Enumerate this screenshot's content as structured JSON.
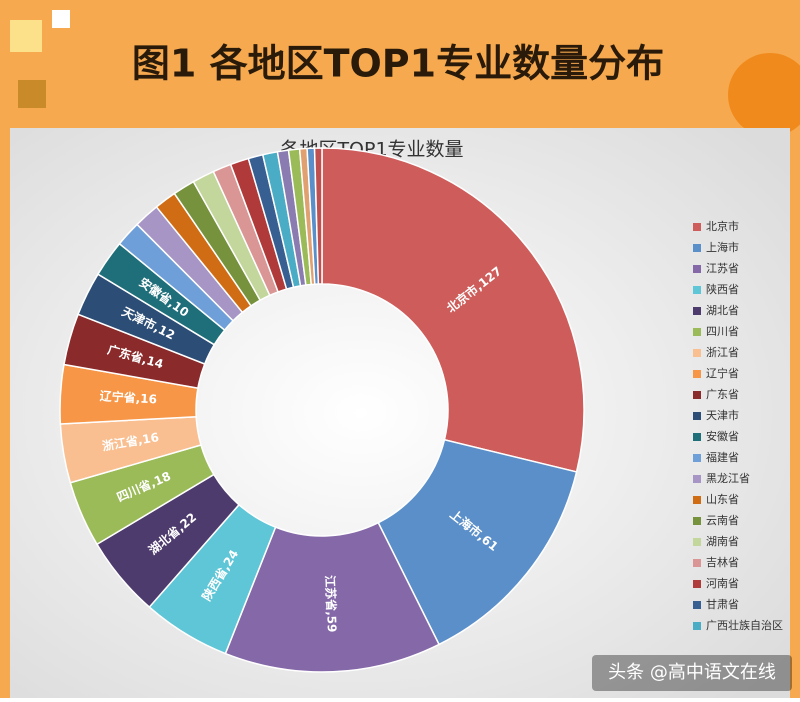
{
  "banner_title": "图1  各地区TOP1专业数量分布",
  "watermark": "头条 @高中语文在线",
  "chart_data": {
    "type": "donut",
    "title": "各地区TOP1专业数量",
    "categories": [
      "北京市",
      "上海市",
      "江苏省",
      "陕西省",
      "湖北省",
      "四川省",
      "浙江省",
      "辽宁省",
      "广东省",
      "天津市",
      "安徽省",
      "福建省",
      "黑龙江省",
      "山东省",
      "云南省",
      "湖南省",
      "吉林省",
      "河南省",
      "甘肃省",
      "广西壮族自治区",
      null,
      null,
      null,
      null,
      null
    ],
    "values": [
      127,
      61,
      59,
      24,
      22,
      18,
      16,
      16,
      14,
      12,
      10,
      7,
      7,
      6,
      6,
      6,
      5,
      5,
      4,
      4,
      3,
      3,
      2,
      2,
      2
    ],
    "value_labels": [
      "北京市,127",
      "上海市,61",
      "江苏省,59",
      "陕西省,24",
      "湖北省,22",
      "四川省,18",
      "浙江省,16",
      "辽宁省,16",
      "广东省,14",
      "天津市,12",
      "安徽省,10",
      null,
      null,
      null,
      null,
      null,
      null,
      null,
      null,
      null,
      null,
      null,
      null,
      null,
      null
    ],
    "colors": [
      "#cd5c5a",
      "#5b8fc9",
      "#8468a8",
      "#5ec6d6",
      "#4e3b6e",
      "#9bbb59",
      "#f9bf90",
      "#f79646",
      "#8b2a2a",
      "#2c4d75",
      "#1f6f7a",
      "#6f9fd8",
      "#a795c6",
      "#d06d14",
      "#77923c",
      "#c3d69b",
      "#d99694",
      "#b03a3a",
      "#375f92",
      "#4bacc6",
      "#8a7bb0",
      "#9bbb59",
      "#e0a070",
      "#5b8fc9",
      "#c05050"
    ],
    "legend": "right"
  }
}
